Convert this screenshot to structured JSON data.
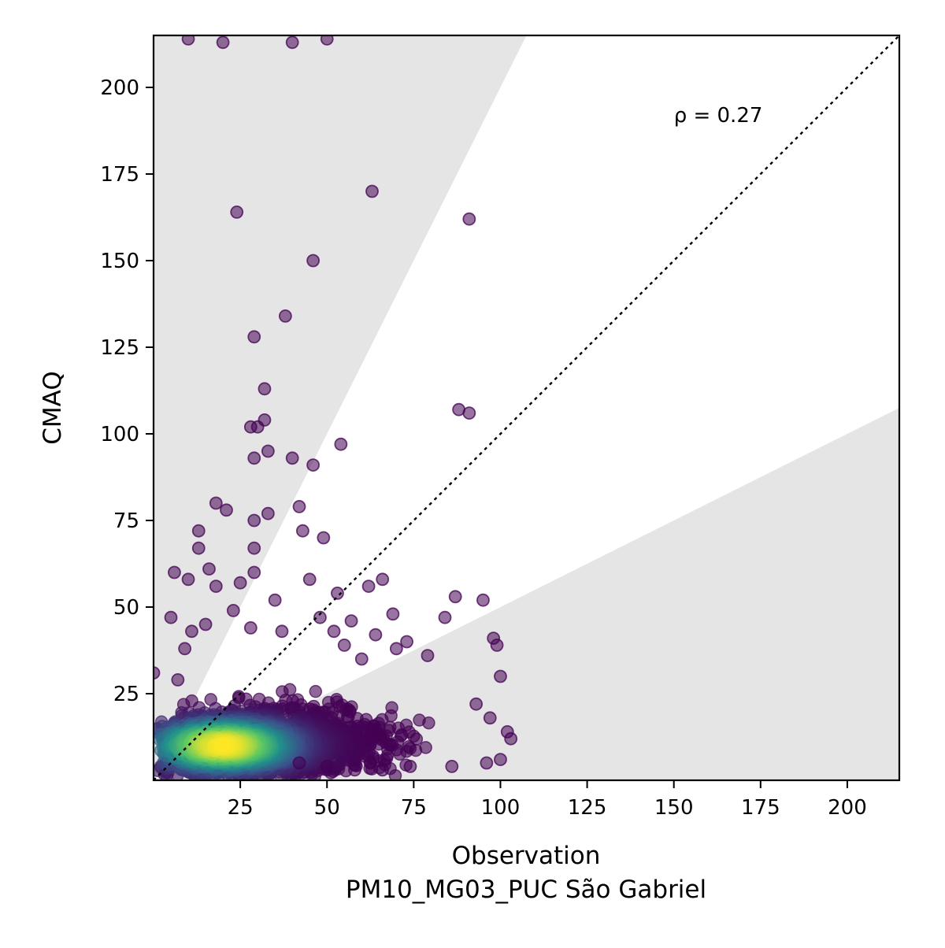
{
  "chart_data": {
    "type": "scatter",
    "title": "",
    "xlabel": "Observation",
    "xlabel_sub": "PM10_MG03_PUC São Gabriel",
    "ylabel": "CMAQ",
    "xlim": [
      0,
      215
    ],
    "ylim": [
      0,
      215
    ],
    "xticks": [
      "25",
      "50",
      "75",
      "100",
      "125",
      "150",
      "175",
      "200"
    ],
    "yticks": [
      "25",
      "50",
      "75",
      "100",
      "125",
      "150",
      "175",
      "200"
    ],
    "grid": false,
    "legend": "none",
    "annotation": {
      "text": "ρ = 0.27",
      "x": 150,
      "y": 190
    },
    "reference_line": {
      "style": "dotted",
      "slope": 1,
      "color": "#000000"
    },
    "shaded_regions": {
      "description": "outside factor-of-2 band",
      "upper_slope": 2,
      "lower_slope": 0.5,
      "color": "#e5e5e5"
    },
    "colormap": [
      "#440154",
      "#3b528b",
      "#21918c",
      "#5ec962",
      "#fde725"
    ],
    "outlier_points": [
      [
        10,
        214
      ],
      [
        20,
        213
      ],
      [
        40,
        213
      ],
      [
        50,
        214
      ],
      [
        24,
        164
      ],
      [
        63,
        170
      ],
      [
        91,
        162
      ],
      [
        46,
        150
      ],
      [
        38,
        134
      ],
      [
        29,
        128
      ],
      [
        32,
        113
      ],
      [
        28,
        102
      ],
      [
        30,
        102
      ],
      [
        32,
        104
      ],
      [
        33,
        95
      ],
      [
        29,
        93
      ],
      [
        40,
        93
      ],
      [
        46,
        91
      ],
      [
        54,
        97
      ],
      [
        88,
        107
      ],
      [
        91,
        106
      ],
      [
        18,
        80
      ],
      [
        21,
        78
      ],
      [
        29,
        75
      ],
      [
        33,
        77
      ],
      [
        42,
        79
      ],
      [
        43,
        72
      ],
      [
        49,
        70
      ],
      [
        13,
        72
      ],
      [
        13,
        67
      ],
      [
        29,
        67
      ],
      [
        16,
        61
      ],
      [
        29,
        60
      ],
      [
        6,
        60
      ],
      [
        10,
        58
      ],
      [
        45,
        58
      ],
      [
        62,
        56
      ],
      [
        66,
        58
      ],
      [
        87,
        53
      ],
      [
        95,
        52
      ],
      [
        84,
        47
      ],
      [
        57,
        46
      ],
      [
        98,
        41
      ],
      [
        99,
        39
      ],
      [
        100,
        30
      ],
      [
        0,
        31
      ],
      [
        18,
        56
      ],
      [
        25,
        57
      ],
      [
        35,
        52
      ],
      [
        48,
        47
      ],
      [
        53,
        54
      ],
      [
        69,
        48
      ],
      [
        73,
        40
      ],
      [
        79,
        36
      ],
      [
        93,
        22
      ],
      [
        97,
        18
      ],
      [
        102,
        14
      ],
      [
        103,
        12
      ],
      [
        100,
        6
      ],
      [
        96,
        5
      ],
      [
        86,
        4
      ],
      [
        74,
        4
      ],
      [
        66,
        3
      ],
      [
        58,
        3
      ],
      [
        50,
        4
      ],
      [
        42,
        5
      ],
      [
        9,
        38
      ],
      [
        11,
        43
      ],
      [
        5,
        47
      ],
      [
        7,
        29
      ],
      [
        15,
        45
      ],
      [
        23,
        49
      ],
      [
        28,
        44
      ],
      [
        37,
        43
      ],
      [
        52,
        43
      ],
      [
        55,
        39
      ],
      [
        60,
        35
      ],
      [
        64,
        42
      ],
      [
        70,
        38
      ]
    ],
    "density_core": {
      "center": [
        20,
        10
      ],
      "spread_x": 28,
      "spread_y": 7,
      "x_range": [
        1,
        104
      ],
      "y_range": [
        1,
        45
      ]
    }
  }
}
